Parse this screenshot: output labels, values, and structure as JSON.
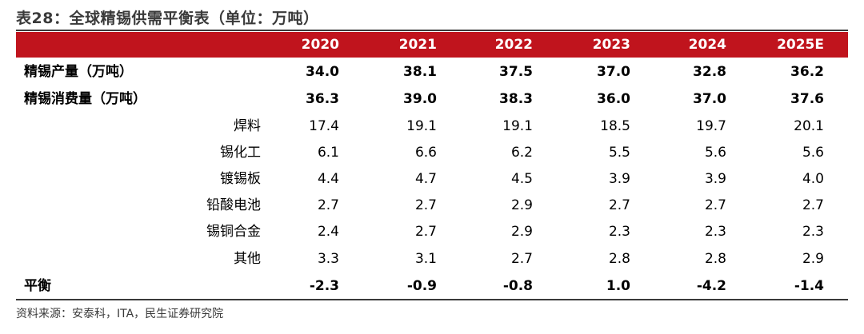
{
  "title": "表28：全球精锡供需平衡表（单位：万吨）",
  "columns": [
    "2020",
    "2021",
    "2022",
    "2023",
    "2024",
    "2025E"
  ],
  "rows": [
    {
      "label": "精锡产量（万吨）",
      "values": [
        "34.0",
        "38.1",
        "37.5",
        "37.0",
        "32.8",
        "36.2"
      ]
    },
    {
      "label": "精锡消费量（万吨）",
      "values": [
        "36.3",
        "39.0",
        "38.3",
        "36.0",
        "37.0",
        "37.6"
      ]
    },
    {
      "label": "焊料",
      "values": [
        "17.4",
        "19.1",
        "19.1",
        "18.5",
        "19.7",
        "20.1"
      ]
    },
    {
      "label": "锡化工",
      "values": [
        "6.1",
        "6.6",
        "6.2",
        "5.5",
        "5.6",
        "5.6"
      ]
    },
    {
      "label": "镀锡板",
      "values": [
        "4.4",
        "4.7",
        "4.5",
        "3.9",
        "3.9",
        "4.0"
      ]
    },
    {
      "label": "铅酸电池",
      "values": [
        "2.7",
        "2.7",
        "2.9",
        "2.7",
        "2.7",
        "2.7"
      ]
    },
    {
      "label": "锡铜合金",
      "values": [
        "2.4",
        "2.7",
        "2.9",
        "2.3",
        "2.3",
        "2.3"
      ]
    },
    {
      "label": "其他",
      "values": [
        "3.3",
        "3.1",
        "2.7",
        "2.8",
        "2.8",
        "2.9"
      ]
    },
    {
      "label": "平衡",
      "values": [
        "-2.3",
        "-0.9",
        "-0.8",
        "1.0",
        "-4.2",
        "-1.4"
      ]
    }
  ],
  "source": "资料来源：安泰科，ITA，民生证券研究院",
  "colors": {
    "header_bg": "#c0141d",
    "header_text": "#ffffff",
    "rule": "#3a3a3a"
  }
}
